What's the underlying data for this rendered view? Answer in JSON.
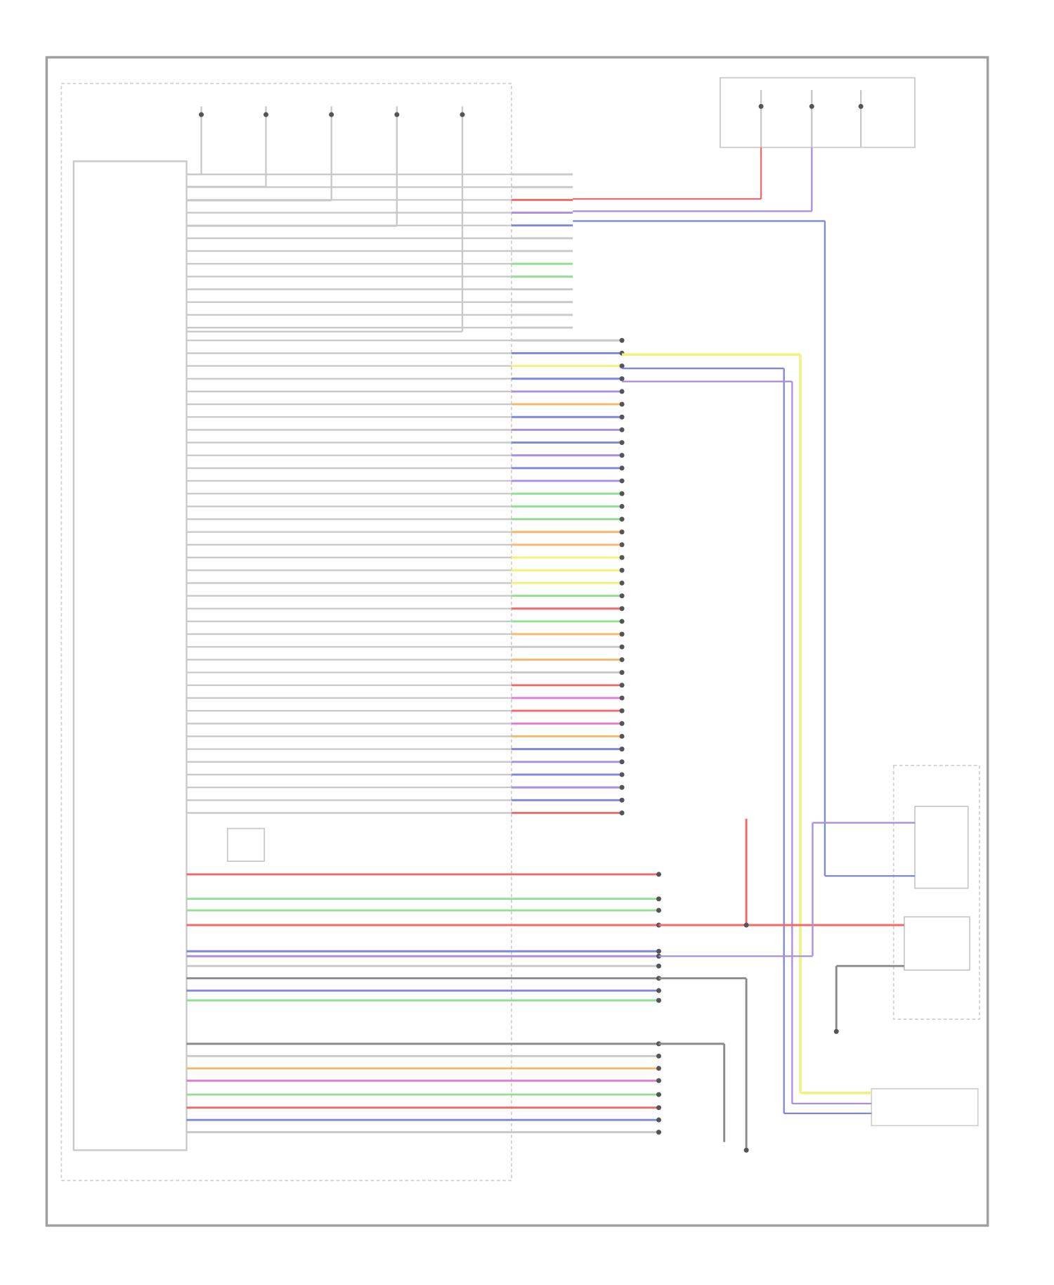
{
  "diagram": {
    "type": "wiring-schematic",
    "colors": {
      "frame": "#9a9a9a",
      "wire_default": "#c8c8c8",
      "red": "#f06a6a",
      "pink": "#f29ab0",
      "blue": "#7f86e0",
      "purple": "#a88fe0",
      "green": "#8fe08f",
      "yellow": "#f2f27a",
      "orange": "#f5b86a",
      "magenta": "#e07ad6",
      "dark": "#8a8a8a"
    },
    "upper_wire_colors": [
      "default",
      "default",
      "red",
      "purple",
      "blue",
      "default",
      "default",
      "green",
      "green",
      "default",
      "default",
      "default",
      "default",
      "default",
      "blue",
      "yellow",
      "blue",
      "purple",
      "orange",
      "blue",
      "purple",
      "blue",
      "purple",
      "blue",
      "purple",
      "green",
      "green",
      "green",
      "orange",
      "orange",
      "yellow",
      "yellow",
      "yellow",
      "green",
      "red",
      "green",
      "orange",
      "default",
      "orange",
      "default",
      "red",
      "magenta",
      "red",
      "magenta",
      "orange",
      "blue",
      "purple",
      "blue",
      "purple",
      "blue",
      "red"
    ],
    "lower_wire_colors": [
      "red",
      "green",
      "green",
      "red",
      "blue",
      "purple",
      "default",
      "dark",
      "blue",
      "green",
      "dark",
      "default",
      "orange",
      "magenta",
      "green",
      "red",
      "blue",
      "default"
    ]
  }
}
